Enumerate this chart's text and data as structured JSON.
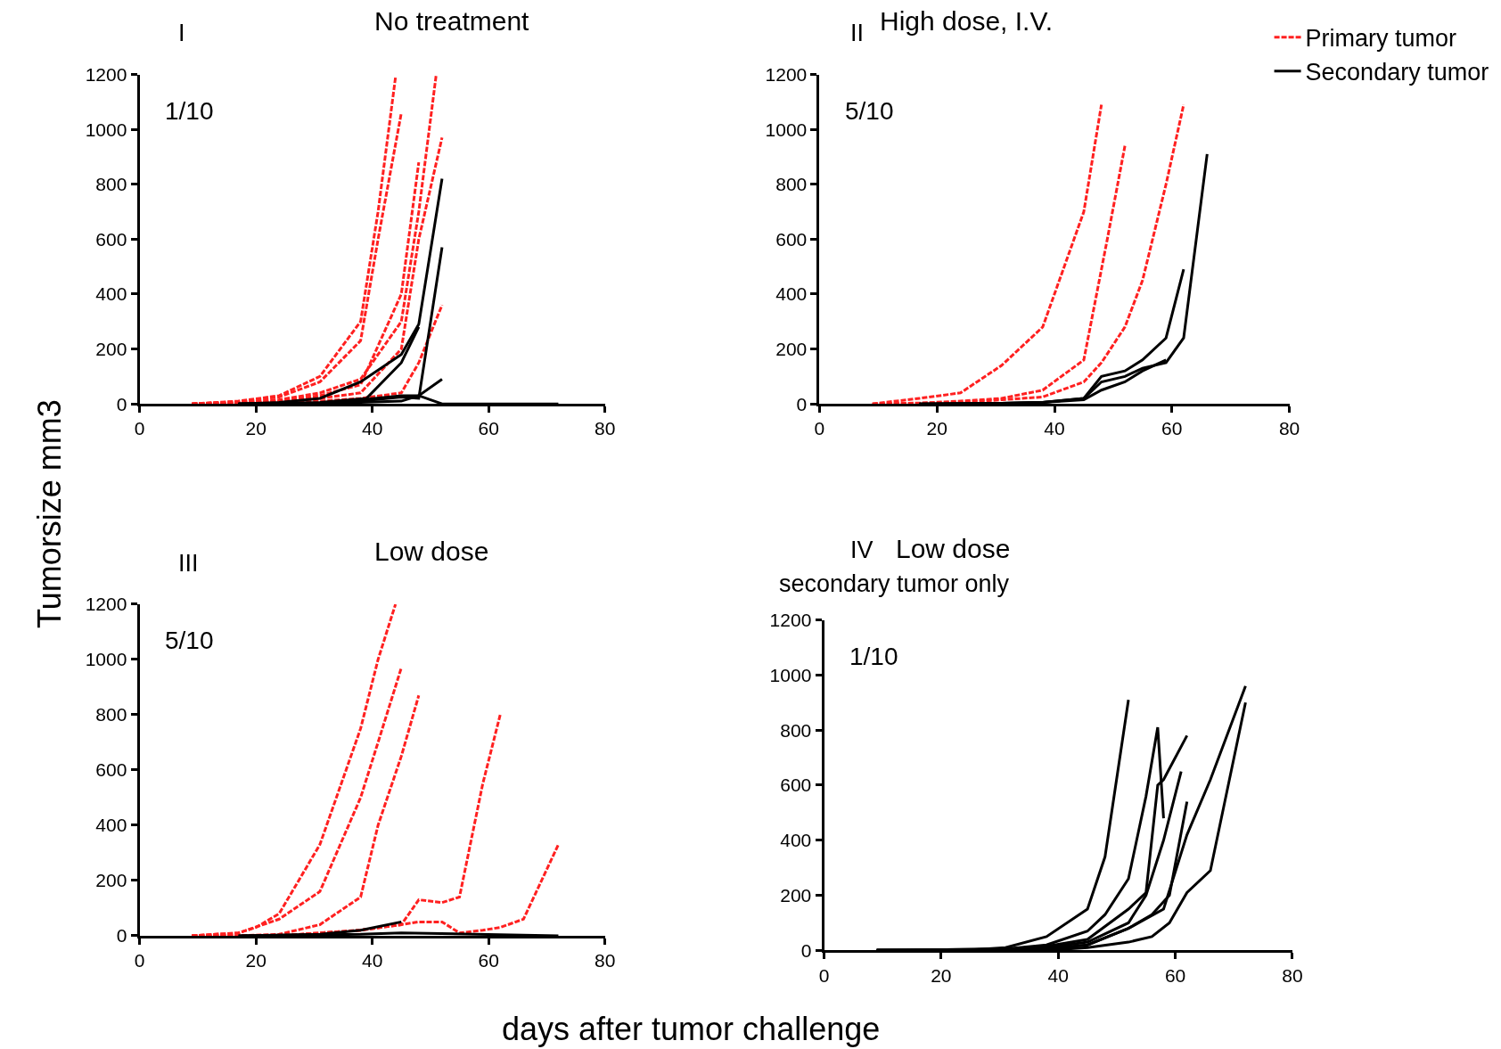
{
  "chart_data": [
    {
      "type": "line",
      "title": "No treatment",
      "ylabel": "Tumorsize mm3",
      "annotations": [
        "I",
        "1/10"
      ],
      "xlim": [
        0,
        80
      ],
      "xticks": [
        0,
        20,
        40,
        60,
        80
      ],
      "ylim": [
        0,
        1200
      ],
      "yticks": [
        0,
        200,
        400,
        600,
        800,
        1000,
        1200
      ],
      "marker": "none",
      "series": [
        {
          "color": "#ff2020",
          "line_style": "dashed",
          "x": [
            9,
            17,
            24,
            31,
            38,
            41,
            44
          ],
          "values": [
            0,
            10,
            30,
            100,
            300,
            700,
            1190
          ]
        },
        {
          "color": "#ff2020",
          "line_style": "dashed",
          "x": [
            9,
            17,
            24,
            31,
            38,
            41,
            45
          ],
          "values": [
            0,
            8,
            25,
            80,
            230,
            600,
            1060
          ]
        },
        {
          "color": "#ff2020",
          "line_style": "dashed",
          "x": [
            9,
            17,
            24,
            31,
            38,
            45,
            48,
            51
          ],
          "values": [
            0,
            5,
            15,
            40,
            90,
            300,
            700,
            1200
          ]
        },
        {
          "color": "#ff2020",
          "line_style": "dashed",
          "x": [
            9,
            17,
            24,
            31,
            38,
            45,
            48
          ],
          "values": [
            0,
            3,
            10,
            30,
            70,
            400,
            880
          ]
        },
        {
          "color": "#ff2020",
          "line_style": "dashed",
          "x": [
            9,
            17,
            24,
            31,
            38,
            45,
            48,
            52
          ],
          "values": [
            0,
            2,
            8,
            20,
            40,
            200,
            600,
            970
          ]
        },
        {
          "color": "#ff2020",
          "line_style": "dashed",
          "x": [
            9,
            17,
            24,
            31,
            38,
            45,
            48,
            52
          ],
          "values": [
            0,
            1,
            5,
            10,
            20,
            40,
            150,
            360
          ]
        },
        {
          "color": "#000000",
          "line_style": "solid",
          "x": [
            17,
            24,
            31,
            38,
            45,
            48,
            52
          ],
          "values": [
            0,
            5,
            20,
            80,
            180,
            290,
            820
          ]
        },
        {
          "color": "#000000",
          "line_style": "solid",
          "x": [
            17,
            31,
            39,
            45,
            48
          ],
          "values": [
            0,
            5,
            20,
            150,
            280
          ]
        },
        {
          "color": "#000000",
          "line_style": "solid",
          "x": [
            17,
            31,
            38,
            45,
            48,
            52
          ],
          "values": [
            0,
            2,
            10,
            25,
            20,
            570
          ]
        },
        {
          "color": "#000000",
          "line_style": "solid",
          "x": [
            17,
            31,
            38,
            45,
            48,
            52
          ],
          "values": [
            0,
            0,
            5,
            10,
            30,
            90
          ]
        },
        {
          "color": "#000000",
          "line_style": "solid",
          "x": [
            17,
            31,
            45,
            48,
            52,
            72
          ],
          "values": [
            0,
            0,
            30,
            30,
            0,
            0
          ]
        }
      ]
    },
    {
      "type": "line",
      "title": "High dose, I.V.",
      "annotations": [
        "II",
        "5/10"
      ],
      "xlim": [
        0,
        80
      ],
      "xticks": [
        0,
        20,
        40,
        60,
        80
      ],
      "ylim": [
        0,
        1200
      ],
      "yticks": [
        0,
        200,
        400,
        600,
        800,
        1000,
        1200
      ],
      "marker": "none",
      "legend": "top right",
      "series": [
        {
          "name": "Primary tumor",
          "color": "#ff2020",
          "line_style": "dashed",
          "x": [
            9,
            17,
            24,
            31,
            38,
            45,
            48
          ],
          "values": [
            0,
            20,
            40,
            140,
            280,
            700,
            1090
          ]
        },
        {
          "color": "#ff2020",
          "line_style": "dashed",
          "x": [
            9,
            17,
            24,
            31,
            38,
            45,
            49,
            52
          ],
          "values": [
            0,
            3,
            10,
            20,
            50,
            160,
            600,
            940
          ]
        },
        {
          "color": "#ff2020",
          "line_style": "dashed",
          "x": [
            9,
            17,
            24,
            31,
            38,
            45,
            48,
            52,
            55,
            59,
            62
          ],
          "values": [
            0,
            2,
            5,
            15,
            25,
            80,
            150,
            280,
            450,
            800,
            1090
          ]
        },
        {
          "name": "Secondary tumor",
          "color": "#000000",
          "line_style": "solid",
          "x": [
            17,
            31,
            38,
            45,
            48,
            52,
            55,
            59,
            62
          ],
          "values": [
            0,
            2,
            5,
            20,
            100,
            120,
            160,
            240,
            490
          ]
        },
        {
          "color": "#000000",
          "line_style": "solid",
          "x": [
            17,
            31,
            38,
            45,
            48,
            52,
            55,
            59,
            62,
            66
          ],
          "values": [
            0,
            2,
            5,
            20,
            80,
            100,
            130,
            150,
            240,
            910
          ]
        },
        {
          "color": "#000000",
          "line_style": "solid",
          "x": [
            17,
            31,
            38,
            45,
            48,
            52,
            55,
            59
          ],
          "values": [
            0,
            2,
            5,
            15,
            50,
            80,
            120,
            160
          ]
        }
      ]
    },
    {
      "type": "line",
      "title": "Low dose",
      "xlabel": "days after tumor challenge",
      "annotations": [
        "III",
        "5/10"
      ],
      "xlim": [
        0,
        80
      ],
      "xticks": [
        0,
        20,
        40,
        60,
        80
      ],
      "ylim": [
        0,
        1200
      ],
      "yticks": [
        0,
        200,
        400,
        600,
        800,
        1000,
        1200
      ],
      "marker": "none",
      "series": [
        {
          "color": "#ff2020",
          "line_style": "dashed",
          "x": [
            9,
            17,
            20,
            24,
            31,
            38,
            41,
            44
          ],
          "values": [
            0,
            10,
            30,
            80,
            330,
            750,
            1000,
            1200
          ]
        },
        {
          "color": "#ff2020",
          "line_style": "dashed",
          "x": [
            9,
            17,
            24,
            31,
            38,
            41,
            45
          ],
          "values": [
            0,
            10,
            60,
            160,
            500,
            700,
            970
          ]
        },
        {
          "color": "#ff2020",
          "line_style": "dashed",
          "x": [
            9,
            17,
            24,
            31,
            38,
            41,
            45,
            48
          ],
          "values": [
            0,
            0,
            5,
            40,
            140,
            400,
            650,
            870
          ]
        },
        {
          "color": "#ff2020",
          "line_style": "dashed",
          "x": [
            9,
            24,
            38,
            45,
            48,
            52,
            55,
            59,
            62
          ],
          "values": [
            0,
            0,
            20,
            40,
            130,
            120,
            140,
            550,
            800
          ]
        },
        {
          "color": "#ff2020",
          "line_style": "dashed",
          "x": [
            9,
            24,
            38,
            45,
            48,
            52,
            55,
            59,
            62,
            66,
            72
          ],
          "values": [
            0,
            0,
            20,
            40,
            50,
            50,
            10,
            20,
            30,
            60,
            330
          ]
        },
        {
          "color": "#000000",
          "line_style": "solid",
          "x": [
            17,
            31,
            38,
            45
          ],
          "values": [
            0,
            5,
            20,
            50
          ]
        },
        {
          "color": "#000000",
          "line_style": "solid",
          "x": [
            17,
            38,
            45,
            72
          ],
          "values": [
            0,
            5,
            10,
            0
          ]
        }
      ]
    },
    {
      "type": "line",
      "title": "Low dose",
      "subtitle": "secondary tumor only",
      "annotations": [
        "IV",
        "1/10"
      ],
      "xlim": [
        0,
        80
      ],
      "xticks": [
        0,
        20,
        40,
        60,
        80
      ],
      "ylim": [
        0,
        1200
      ],
      "yticks": [
        0,
        200,
        400,
        600,
        800,
        1000,
        1200
      ],
      "marker": "none",
      "series": [
        {
          "color": "#000000",
          "line_style": "solid",
          "x": [
            9,
            24,
            31,
            38,
            45,
            48,
            52
          ],
          "values": [
            0,
            0,
            10,
            50,
            150,
            340,
            910
          ]
        },
        {
          "color": "#000000",
          "line_style": "solid",
          "x": [
            9,
            31,
            38,
            45,
            48,
            52,
            55,
            57,
            58
          ],
          "values": [
            0,
            5,
            20,
            70,
            130,
            260,
            560,
            810,
            480
          ]
        },
        {
          "color": "#000000",
          "line_style": "solid",
          "x": [
            9,
            31,
            38,
            45,
            52,
            55,
            57,
            58,
            62
          ],
          "values": [
            0,
            5,
            15,
            40,
            150,
            210,
            600,
            620,
            780
          ]
        },
        {
          "color": "#000000",
          "line_style": "solid",
          "x": [
            9,
            31,
            38,
            45,
            52,
            55,
            58,
            61
          ],
          "values": [
            0,
            0,
            10,
            30,
            100,
            200,
            400,
            650
          ]
        },
        {
          "color": "#000000",
          "line_style": "solid",
          "x": [
            9,
            31,
            38,
            45,
            52,
            56,
            59,
            62
          ],
          "values": [
            0,
            0,
            5,
            20,
            80,
            130,
            200,
            540
          ]
        },
        {
          "color": "#000000",
          "line_style": "solid",
          "x": [
            9,
            31,
            38,
            45,
            52,
            58,
            62,
            66,
            72
          ],
          "values": [
            0,
            0,
            5,
            20,
            80,
            150,
            420,
            620,
            960
          ]
        },
        {
          "color": "#000000",
          "line_style": "solid",
          "x": [
            9,
            31,
            38,
            45,
            52,
            56,
            59,
            62,
            66,
            72
          ],
          "values": [
            0,
            0,
            0,
            10,
            30,
            50,
            100,
            210,
            290,
            900
          ]
        }
      ]
    }
  ]
}
